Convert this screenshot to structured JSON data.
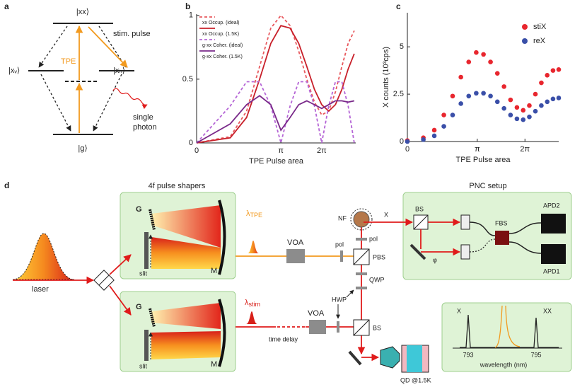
{
  "panel_a": {
    "label": "a",
    "levels": {
      "xx": "|xx⟩",
      "xv": "|xᵥ⟩",
      "xh": "|xₕ⟩",
      "g": "|g⟩"
    },
    "tpe": "TPE",
    "stim": "stim. pulse",
    "photon": [
      "single",
      "photon"
    ]
  },
  "chart_data": [
    {
      "type": "line",
      "label": "b",
      "xlabel": "TPE Pulse area",
      "x": [
        0,
        0.2,
        0.4,
        0.6,
        0.8,
        1.0,
        1.2,
        1.4,
        1.6,
        1.8,
        2.0,
        2.2,
        2.4,
        2.6,
        2.8,
        3.0
      ],
      "xlim": [
        0,
        3.05
      ],
      "xscale": "power",
      "xpower": 0.57,
      "xticks": [
        0,
        {
          "value": 1,
          "label": "π"
        },
        {
          "value": 2,
          "label": "2π"
        }
      ],
      "ylim": [
        0,
        1.01
      ],
      "yticks": [
        0,
        0.5,
        1
      ],
      "legend": "upper left",
      "series": [
        {
          "name": "xx Occup. (ideal)",
          "color": "#e8595e",
          "dash": true,
          "values": [
            0,
            0.05,
            0.25,
            0.6,
            0.9,
            1.0,
            0.92,
            0.72,
            0.5,
            0.32,
            0.22,
            0.25,
            0.4,
            0.6,
            0.78,
            0.88
          ]
        },
        {
          "name": "xx Occup. (1.5K)",
          "color": "#c8202a",
          "dash": false,
          "values": [
            0,
            0.04,
            0.2,
            0.5,
            0.78,
            0.92,
            0.9,
            0.78,
            0.6,
            0.42,
            0.3,
            0.25,
            0.3,
            0.42,
            0.58,
            0.7
          ]
        },
        {
          "name": "g-xx Coher. (ideal)",
          "color": "#b565d6",
          "dash": true,
          "values": [
            0,
            0.29,
            0.48,
            0.48,
            0.29,
            0,
            0.29,
            0.48,
            0.48,
            0.29,
            0,
            0.29,
            0.48,
            0.48,
            0.29,
            0
          ]
        },
        {
          "name": "g-xx Coher. (1.5K)",
          "color": "#7a2a8a",
          "dash": false,
          "values": [
            0,
            0.15,
            0.3,
            0.37,
            0.3,
            0.1,
            0.2,
            0.3,
            0.33,
            0.3,
            0.27,
            0.3,
            0.33,
            0.33,
            0.32,
            0.33
          ]
        }
      ]
    },
    {
      "type": "scatter",
      "label": "c",
      "xlabel": "TPE Pulse area",
      "ylabel": "X counts (10³cps)",
      "x": [
        0,
        0.14,
        0.28,
        0.42,
        0.56,
        0.7,
        0.84,
        0.98,
        1.12,
        1.26,
        1.4,
        1.54,
        1.68,
        1.82,
        1.96,
        2.1,
        2.24,
        2.38,
        2.52,
        2.66,
        2.8
      ],
      "xlim": [
        0,
        2.8
      ],
      "xscale": "power",
      "xpower": 0.75,
      "xticks": [
        0,
        {
          "value": 1,
          "label": "π"
        },
        {
          "value": 2,
          "label": "2π"
        }
      ],
      "ylim": [
        0,
        6.8
      ],
      "yticks": [
        0,
        2.5,
        5
      ],
      "legend": "upper right",
      "series": [
        {
          "name": "stiX",
          "color": "#e8262e",
          "values": [
            0.05,
            0.2,
            0.6,
            1.4,
            2.4,
            3.4,
            4.2,
            4.7,
            4.6,
            4.2,
            3.6,
            2.9,
            2.2,
            1.8,
            1.65,
            1.9,
            2.5,
            3.1,
            3.5,
            3.75,
            3.8
          ]
        },
        {
          "name": "reX",
          "color": "#3a4fa8",
          "values": [
            0,
            0.1,
            0.3,
            0.8,
            1.4,
            2.0,
            2.4,
            2.55,
            2.55,
            2.4,
            2.1,
            1.75,
            1.4,
            1.2,
            1.15,
            1.3,
            1.6,
            1.9,
            2.1,
            2.25,
            2.3
          ]
        }
      ]
    }
  ],
  "panel_d": {
    "label": "d",
    "shapers_title": "4f pulse shapers",
    "pnc_title": "PNC setup",
    "laser": "laser",
    "shaper_parts": {
      "g": "G",
      "slit": "slit",
      "m": "M"
    },
    "lambda_tpe": {
      "symbol": "λ",
      "sub": "TPE"
    },
    "lambda_stim": {
      "symbol": "λ",
      "sub": "stim"
    },
    "voa": "VOA",
    "pol": "pol",
    "pbs": "PBS",
    "qwp": "QWP",
    "hwp": "HWP",
    "bs": "BS",
    "nf": "NF",
    "x": "X",
    "phi": "φ",
    "fbs": "FBS",
    "apd2": "APD2",
    "apd1": "APD1",
    "time_delay": "time delay",
    "qd": "QD @1.5K",
    "spectrum": {
      "peak_x": "X",
      "peak_xx": "XX",
      "ticks": [
        793,
        795
      ],
      "xlabel": "wavelength (nm)"
    }
  }
}
